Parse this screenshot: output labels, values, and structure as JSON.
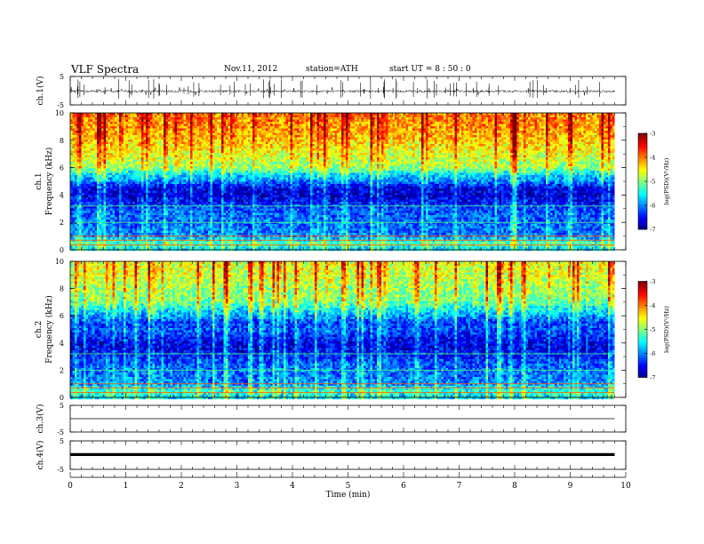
{
  "header": {
    "title": "VLF  Spectra",
    "date": "Nov.11, 2012",
    "station": "station=ATH",
    "start": "start  UT =   8 : 50 : 0"
  },
  "chart_data": {
    "type": "heatmap",
    "xlabel": "Time  (min)",
    "xlim": [
      0,
      10
    ],
    "xticks": [
      "0",
      "1",
      "2",
      "3",
      "4",
      "5",
      "6",
      "7",
      "8",
      "9",
      "10"
    ],
    "data_end_min": 9.8,
    "panels": [
      {
        "id": "ch1-wave",
        "type": "line",
        "ylabel": "ch.1(V)",
        "ylim": [
          -5,
          5
        ],
        "yticks": [
          "5",
          "-5"
        ],
        "level": -0.2,
        "noise": "strong"
      },
      {
        "id": "ch1-spec",
        "type": "heatmap",
        "ylabel_top": "ch.1",
        "ylabel": "Frequency  (kHz)",
        "ylim": [
          0,
          10
        ],
        "yticks": [
          "0",
          "2",
          "4",
          "6",
          "8",
          "10"
        ],
        "colorbar": {
          "label": "log(PSD)(V²/Hz)",
          "range": [
            -7,
            -3
          ],
          "ticks": [
            "-3",
            "-4",
            "-5",
            "-6",
            "-7"
          ]
        },
        "profile_khz": [
          0,
          0.5,
          1,
          2,
          3,
          3.5,
          4,
          4.5,
          5,
          5.5,
          6,
          7,
          8,
          9,
          10
        ],
        "profile_logpsd": [
          -5.6,
          -5.2,
          -6.0,
          -6.1,
          -6.2,
          -6.5,
          -6.7,
          -6.6,
          -6.0,
          -5.6,
          -4.9,
          -4.6,
          -4.3,
          -4.1,
          -4.0
        ]
      },
      {
        "id": "ch2-spec",
        "type": "heatmap",
        "ylabel_top": "ch.2",
        "ylabel": "Frequency  (kHz)",
        "ylim": [
          0,
          10
        ],
        "yticks": [
          "0",
          "2",
          "4",
          "6",
          "8",
          "10"
        ],
        "colorbar": {
          "label": "log(PSD)(V²/Hz)",
          "range": [
            -7,
            -3
          ],
          "ticks": [
            "-3",
            "-4",
            "-5",
            "-6",
            "-7"
          ]
        },
        "profile_khz": [
          0,
          0.5,
          1,
          2,
          2.5,
          3,
          3.5,
          4,
          4.5,
          5,
          5.5,
          6,
          7,
          8,
          9,
          10
        ],
        "profile_logpsd": [
          -5.6,
          -5.3,
          -6.0,
          -6.1,
          -6.2,
          -6.4,
          -6.6,
          -6.6,
          -6.4,
          -6.2,
          -6.3,
          -5.9,
          -5.1,
          -4.9,
          -4.7,
          -4.6
        ]
      },
      {
        "id": "ch3-wave",
        "type": "line",
        "ylabel": "ch.3(V)",
        "ylim": [
          -5,
          5
        ],
        "yticks": [
          "5",
          "-5"
        ],
        "level": 0.0,
        "noise": "flat"
      },
      {
        "id": "ch4-wave",
        "type": "line",
        "ylabel": "ch.4(V)",
        "ylim": [
          -5,
          5
        ],
        "yticks": [
          "5",
          "-5"
        ],
        "level": 0.2,
        "noise": "thick"
      }
    ]
  }
}
